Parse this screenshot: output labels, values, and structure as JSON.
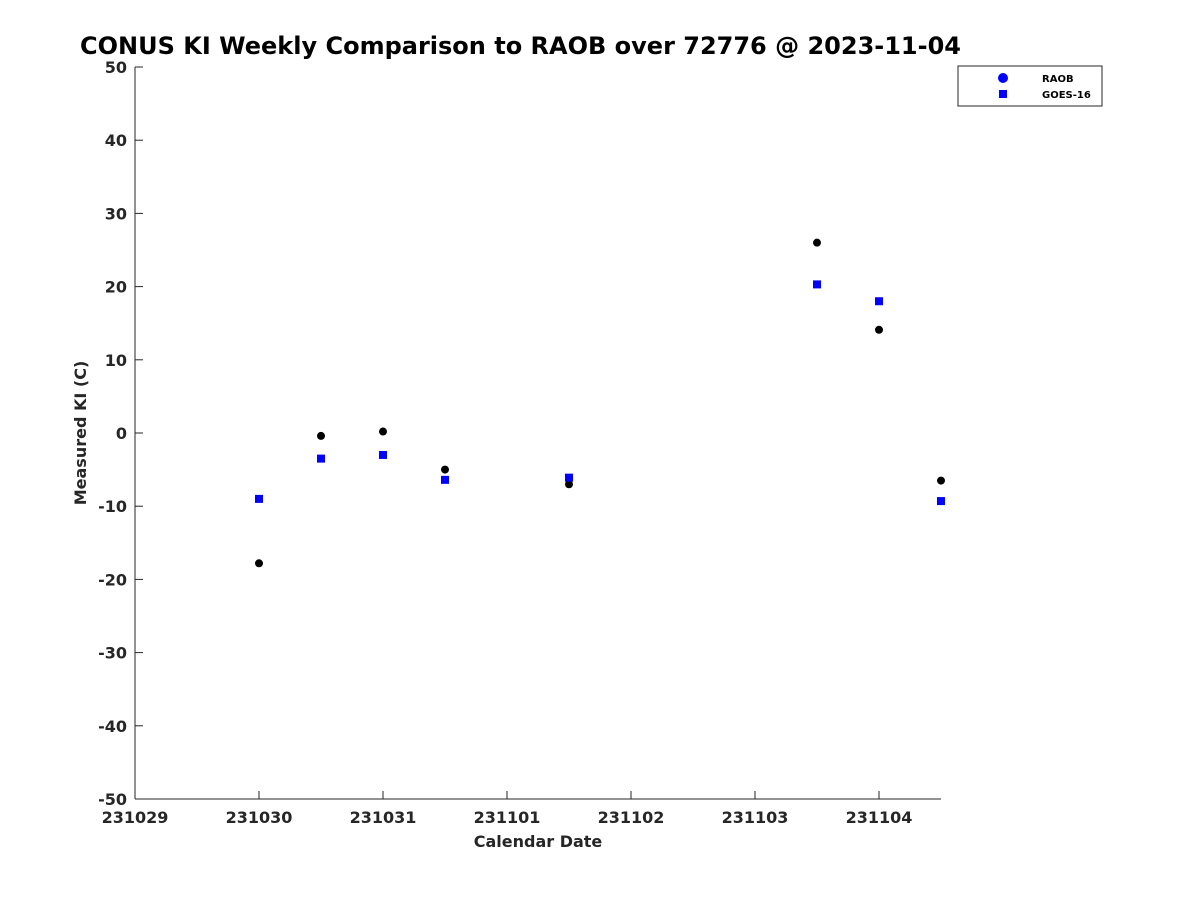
{
  "chart_data": {
    "type": "scatter",
    "title": "CONUS KI Weekly Comparison to RAOB over 72776 @ 2023-11-04",
    "xlabel": "Calendar Date",
    "ylabel": "Measured KI (C)",
    "xlim": [
      "2023-10-29",
      "2023-11-04 12:00"
    ],
    "ylim": [
      -50,
      50
    ],
    "x_ticks": [
      "2023-10-29",
      "2023-10-30",
      "2023-10-31",
      "2023-11-01",
      "2023-11-02",
      "2023-11-03",
      "2023-11-04"
    ],
    "x_tick_labels": [
      "231029",
      "231030",
      "231031",
      "231101",
      "231102",
      "231103",
      "231104"
    ],
    "y_ticks": [
      50,
      40,
      30,
      20,
      10,
      0,
      -10,
      -20,
      -30,
      -40,
      -50
    ],
    "grid": false,
    "legend_position": "top-right",
    "series": [
      {
        "name": "RAOB",
        "marker": "circle",
        "color": "#000000",
        "legend_color": "#0000ff",
        "x": [
          "2023-10-30 00:00",
          "2023-10-30 12:00",
          "2023-10-31 00:00",
          "2023-10-31 12:00",
          "2023-11-01 12:00",
          "2023-11-03 12:00",
          "2023-11-04 00:00",
          "2023-11-04 12:00"
        ],
        "y": [
          -17.8,
          -0.4,
          0.2,
          -5.0,
          -7.0,
          26.0,
          14.1,
          -6.5
        ]
      },
      {
        "name": "GOES-16",
        "marker": "square",
        "color": "#0000ff",
        "legend_color": "#0000ff",
        "x": [
          "2023-10-30 00:00",
          "2023-10-30 12:00",
          "2023-10-31 00:00",
          "2023-10-31 12:00",
          "2023-11-01 12:00",
          "2023-11-03 12:00",
          "2023-11-04 00:00",
          "2023-11-04 12:00"
        ],
        "y": [
          -9.0,
          -3.5,
          -3.0,
          -6.4,
          -6.1,
          20.3,
          18.0,
          -9.3
        ]
      }
    ]
  }
}
